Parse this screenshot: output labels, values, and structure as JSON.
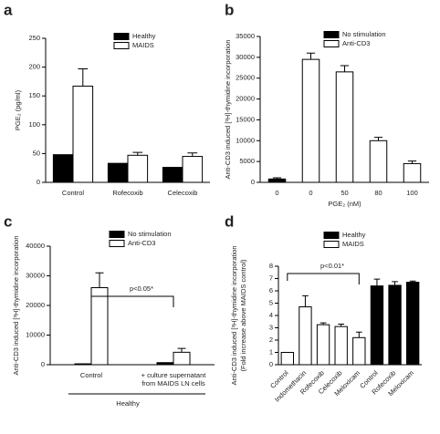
{
  "chart_data": [
    {
      "type": "bar",
      "panel": "a",
      "ylabel": [
        "PGE₂ (pg/ml)"
      ],
      "categories": [
        [
          "Control"
        ],
        [
          "Rofecoxib"
        ],
        [
          "Celecoxib"
        ]
      ],
      "series": [
        {
          "name": "Healthy",
          "color": "#000000",
          "values": [
            48,
            33,
            26
          ]
        },
        {
          "name": "MAIDS",
          "color": "#ffffff",
          "values": [
            167,
            47,
            45
          ],
          "errors": [
            30,
            5,
            6
          ]
        }
      ],
      "ylim": [
        0,
        250
      ],
      "yticks": [
        0,
        50,
        100,
        150,
        200,
        250
      ]
    },
    {
      "type": "bar",
      "panel": "b",
      "ylabel": [
        "Anti-CD3 induced [³H]-thymidine incorporation"
      ],
      "xlabel": "PGE₂ (nM)",
      "categories": [
        [
          "0"
        ],
        [
          "0"
        ],
        [
          "50"
        ],
        [
          "80"
        ],
        [
          "100"
        ]
      ],
      "series": [
        {
          "name": "No stimulation",
          "color": "#000000",
          "values": [
            800,
            null,
            null,
            null,
            null
          ],
          "errors": [
            300,
            null,
            null,
            null,
            null
          ]
        },
        {
          "name": "Anti-CD3",
          "color": "#ffffff",
          "values": [
            null,
            29500,
            26500,
            10000,
            4500
          ],
          "errors": [
            null,
            1500,
            1500,
            800,
            600
          ]
        }
      ],
      "ylim": [
        0,
        35000
      ],
      "yticks": [
        0,
        5000,
        10000,
        15000,
        20000,
        25000,
        30000,
        35000
      ]
    },
    {
      "type": "bar",
      "panel": "c",
      "ylabel": [
        "Anti-CD3 induced [³H]-thymidine incorporation"
      ],
      "categories": [
        [
          "Control"
        ],
        [
          "+ culture supernatant",
          "from MAIDS LN cells"
        ]
      ],
      "group_label": "Healthy",
      "annotation": "p<0.05*",
      "series": [
        {
          "name": "No stimulation",
          "color": "#000000",
          "values": [
            300,
            700
          ]
        },
        {
          "name": "Anti-CD3",
          "color": "#ffffff",
          "values": [
            26000,
            4200
          ],
          "errors": [
            5000,
            1300
          ]
        }
      ],
      "ylim": [
        0,
        40000
      ],
      "yticks": [
        0,
        10000,
        20000,
        30000,
        40000
      ]
    },
    {
      "type": "bar",
      "panel": "d",
      "ylabel": [
        "Anti-CD3 induced [³H]-thymidine incorporation",
        "(Fold increase above MAIDS control)"
      ],
      "categories": [
        [
          "Control"
        ],
        [
          "Indomethacin"
        ],
        [
          "Rofecoxib"
        ],
        [
          "Celecoxib"
        ],
        [
          "Meloxicam"
        ],
        [
          "Control"
        ],
        [
          "Rofecoxib"
        ],
        [
          "Meloxicam"
        ]
      ],
      "annotation": "p<0.01*",
      "series": [
        {
          "name": "Healthy",
          "color": "#000000",
          "values": [
            null,
            null,
            null,
            null,
            null,
            6.4,
            6.45,
            6.7
          ],
          "errors": [
            null,
            null,
            null,
            null,
            null,
            0.55,
            0.3,
            0.1
          ]
        },
        {
          "name": "MAIDS",
          "color": "#ffffff",
          "values": [
            1.0,
            4.7,
            3.25,
            3.1,
            2.2,
            null,
            null,
            null
          ],
          "errors": [
            null,
            0.9,
            0.15,
            0.2,
            0.45,
            null,
            null,
            null
          ]
        }
      ],
      "ylim": [
        0,
        8
      ],
      "yticks": [
        0,
        1,
        2,
        3,
        4,
        5,
        6,
        7,
        8
      ]
    }
  ]
}
